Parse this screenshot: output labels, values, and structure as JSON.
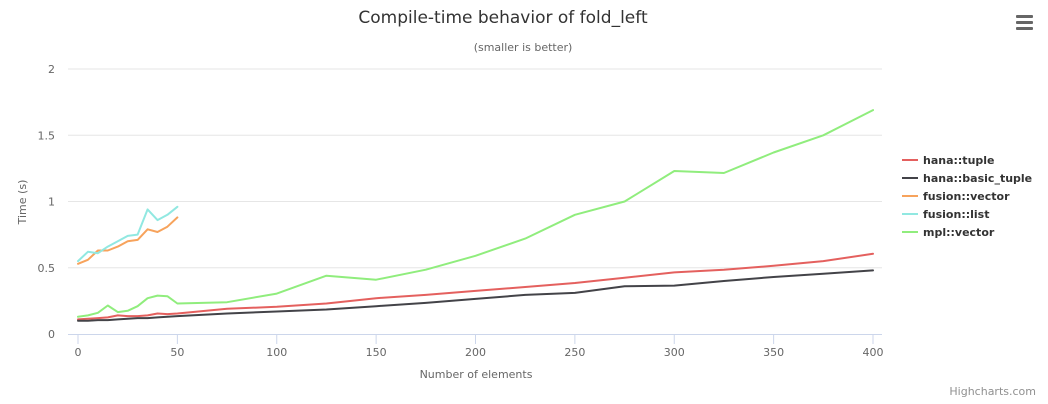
{
  "menu": {
    "icon": "hamburger-menu-icon"
  },
  "credits": "Highcharts.com",
  "chart_data": {
    "type": "line",
    "title": "Compile-time behavior of fold_left",
    "subtitle": "(smaller is better)",
    "xlabel": "Number of elements",
    "ylabel": "Time (s)",
    "xlim": [
      0,
      400
    ],
    "ylim": [
      0,
      2
    ],
    "xticks": [
      0,
      50,
      100,
      150,
      200,
      250,
      300,
      350,
      400
    ],
    "yticks": [
      0,
      0.5,
      1,
      1.5,
      2
    ],
    "xtick_labels": [
      "0",
      "50",
      "100",
      "150",
      "200",
      "250",
      "300",
      "350",
      "400"
    ],
    "ytick_labels": [
      "0",
      "0.5",
      "1",
      "1.5",
      "2"
    ],
    "grid": true,
    "legend_position": "right",
    "series": [
      {
        "name": "hana::tuple",
        "color": "#e4605e",
        "points": [
          [
            0,
            0.11
          ],
          [
            5,
            0.115
          ],
          [
            10,
            0.12
          ],
          [
            15,
            0.125
          ],
          [
            20,
            0.14
          ],
          [
            25,
            0.135
          ],
          [
            30,
            0.135
          ],
          [
            35,
            0.14
          ],
          [
            40,
            0.155
          ],
          [
            45,
            0.15
          ],
          [
            50,
            0.155
          ],
          [
            75,
            0.19
          ],
          [
            100,
            0.205
          ],
          [
            125,
            0.23
          ],
          [
            150,
            0.27
          ],
          [
            175,
            0.295
          ],
          [
            200,
            0.325
          ],
          [
            225,
            0.355
          ],
          [
            250,
            0.385
          ],
          [
            275,
            0.425
          ],
          [
            300,
            0.465
          ],
          [
            325,
            0.485
          ],
          [
            350,
            0.515
          ],
          [
            375,
            0.55
          ],
          [
            400,
            0.605
          ]
        ]
      },
      {
        "name": "hana::basic_tuple",
        "color": "#434348",
        "points": [
          [
            0,
            0.1
          ],
          [
            5,
            0.1
          ],
          [
            10,
            0.105
          ],
          [
            15,
            0.105
          ],
          [
            20,
            0.11
          ],
          [
            25,
            0.115
          ],
          [
            30,
            0.12
          ],
          [
            35,
            0.12
          ],
          [
            40,
            0.125
          ],
          [
            45,
            0.13
          ],
          [
            50,
            0.135
          ],
          [
            75,
            0.155
          ],
          [
            100,
            0.17
          ],
          [
            125,
            0.185
          ],
          [
            150,
            0.21
          ],
          [
            175,
            0.235
          ],
          [
            200,
            0.265
          ],
          [
            225,
            0.295
          ],
          [
            250,
            0.31
          ],
          [
            275,
            0.36
          ],
          [
            300,
            0.365
          ],
          [
            325,
            0.4
          ],
          [
            350,
            0.43
          ],
          [
            375,
            0.455
          ],
          [
            400,
            0.48
          ]
        ]
      },
      {
        "name": "fusion::vector",
        "color": "#f7a35c",
        "points": [
          [
            0,
            0.53
          ],
          [
            5,
            0.56
          ],
          [
            10,
            0.63
          ],
          [
            15,
            0.63
          ],
          [
            20,
            0.66
          ],
          [
            25,
            0.7
          ],
          [
            30,
            0.71
          ],
          [
            35,
            0.79
          ],
          [
            40,
            0.77
          ],
          [
            45,
            0.81
          ],
          [
            50,
            0.88
          ]
        ]
      },
      {
        "name": "fusion::list",
        "color": "#91e8e1",
        "points": [
          [
            0,
            0.55
          ],
          [
            5,
            0.62
          ],
          [
            10,
            0.61
          ],
          [
            15,
            0.66
          ],
          [
            20,
            0.7
          ],
          [
            25,
            0.74
          ],
          [
            30,
            0.75
          ],
          [
            35,
            0.94
          ],
          [
            40,
            0.86
          ],
          [
            45,
            0.9
          ],
          [
            50,
            0.96
          ]
        ]
      },
      {
        "name": "mpl::vector",
        "color": "#90ed7d",
        "points": [
          [
            0,
            0.13
          ],
          [
            5,
            0.14
          ],
          [
            10,
            0.16
          ],
          [
            15,
            0.215
          ],
          [
            20,
            0.165
          ],
          [
            25,
            0.175
          ],
          [
            30,
            0.21
          ],
          [
            35,
            0.27
          ],
          [
            40,
            0.29
          ],
          [
            45,
            0.285
          ],
          [
            50,
            0.23
          ],
          [
            75,
            0.24
          ],
          [
            100,
            0.305
          ],
          [
            125,
            0.44
          ],
          [
            150,
            0.41
          ],
          [
            175,
            0.485
          ],
          [
            200,
            0.59
          ],
          [
            225,
            0.72
          ],
          [
            250,
            0.9
          ],
          [
            275,
            1.0
          ],
          [
            300,
            1.23
          ],
          [
            325,
            1.215
          ],
          [
            350,
            1.37
          ],
          [
            375,
            1.5
          ],
          [
            400,
            1.69
          ]
        ]
      }
    ]
  }
}
